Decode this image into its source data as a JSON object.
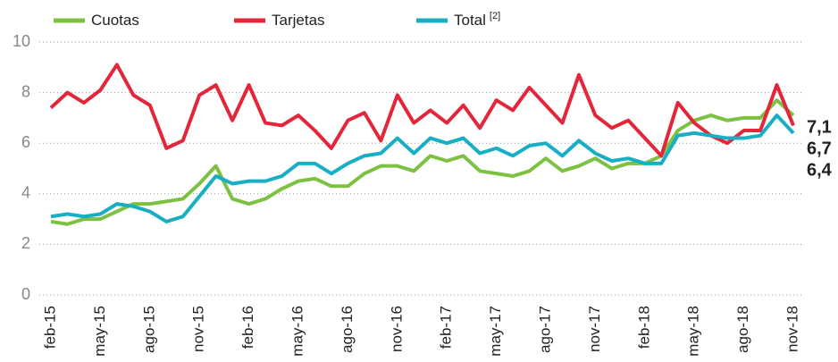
{
  "chart_data": {
    "type": "line",
    "categories": [
      "feb-15",
      null,
      null,
      "may-15",
      null,
      null,
      "ago-15",
      null,
      null,
      "nov-15",
      null,
      null,
      "feb-16",
      null,
      null,
      "may-16",
      null,
      null,
      "ago-16",
      null,
      null,
      "nov-16",
      null,
      null,
      "feb-17",
      null,
      null,
      "may-17",
      null,
      null,
      "ago-17",
      null,
      null,
      "nov-17",
      null,
      null,
      "feb-18",
      null,
      null,
      "may-18",
      null,
      null,
      "ago-18",
      null,
      null,
      "nov-18"
    ],
    "series": [
      {
        "name": "Cuotas",
        "color": "#7dc142",
        "values": [
          2.9,
          2.8,
          3.0,
          3.0,
          3.3,
          3.6,
          3.6,
          3.7,
          3.8,
          4.4,
          5.1,
          3.8,
          3.6,
          3.8,
          4.2,
          4.5,
          4.6,
          4.3,
          4.3,
          4.8,
          5.1,
          5.1,
          4.9,
          5.5,
          5.3,
          5.5,
          4.9,
          4.8,
          4.7,
          4.9,
          5.4,
          4.9,
          5.1,
          5.4,
          5.0,
          5.2,
          5.2,
          5.5,
          6.5,
          6.9,
          7.1,
          6.9,
          7.0,
          7.0,
          7.7,
          7.1
        ],
        "value_labels": [
          null,
          null,
          null,
          null,
          null,
          null,
          null,
          null,
          null,
          null,
          null,
          null,
          null,
          null,
          null,
          null,
          null,
          null,
          null,
          null,
          null,
          null,
          null,
          null,
          null,
          null,
          null,
          null,
          null,
          null,
          null,
          null,
          null,
          null,
          null,
          null,
          null,
          null,
          null,
          null,
          null,
          null,
          null,
          null,
          null,
          "7,1"
        ]
      },
      {
        "name": "Tarjetas",
        "color": "#e3263a",
        "values": [
          7.4,
          8.0,
          7.6,
          8.1,
          9.1,
          7.9,
          7.5,
          5.8,
          6.1,
          7.9,
          8.3,
          6.9,
          8.3,
          6.8,
          6.7,
          7.1,
          6.5,
          5.8,
          6.9,
          7.2,
          6.1,
          7.9,
          6.8,
          7.3,
          6.8,
          7.5,
          6.6,
          7.7,
          7.3,
          8.2,
          7.5,
          6.8,
          8.7,
          7.1,
          6.6,
          6.9,
          6.2,
          5.5,
          7.6,
          6.8,
          6.3,
          6.0,
          6.5,
          6.5,
          8.3,
          6.7
        ],
        "value_labels": [
          null,
          null,
          null,
          null,
          null,
          null,
          null,
          null,
          null,
          null,
          null,
          null,
          null,
          null,
          null,
          null,
          null,
          null,
          null,
          null,
          null,
          null,
          null,
          null,
          null,
          null,
          null,
          null,
          null,
          null,
          null,
          null,
          null,
          null,
          null,
          null,
          null,
          null,
          null,
          null,
          null,
          null,
          null,
          null,
          null,
          "6,7"
        ]
      },
      {
        "name": "Total",
        "name_note": "[2]",
        "color": "#18aec4",
        "values": [
          3.1,
          3.2,
          3.1,
          3.2,
          3.6,
          3.5,
          3.3,
          2.9,
          3.1,
          3.9,
          4.7,
          4.4,
          4.5,
          4.5,
          4.7,
          5.2,
          5.2,
          4.8,
          5.2,
          5.5,
          5.6,
          6.2,
          5.6,
          6.2,
          6.0,
          6.2,
          5.6,
          5.8,
          5.5,
          5.9,
          6.0,
          5.5,
          6.1,
          5.6,
          5.3,
          5.4,
          5.2,
          5.2,
          6.3,
          6.4,
          6.3,
          6.2,
          6.2,
          6.3,
          7.1,
          6.4
        ],
        "value_labels": [
          null,
          null,
          null,
          null,
          null,
          null,
          null,
          null,
          null,
          null,
          null,
          null,
          null,
          null,
          null,
          null,
          null,
          null,
          null,
          null,
          null,
          null,
          null,
          null,
          null,
          null,
          null,
          null,
          null,
          null,
          null,
          null,
          null,
          null,
          null,
          null,
          null,
          null,
          null,
          null,
          null,
          null,
          null,
          null,
          null,
          "6,4"
        ]
      }
    ],
    "ylim": [
      0,
      10
    ],
    "yticks": [
      0,
      2,
      4,
      6,
      8,
      10
    ],
    "grid": true
  }
}
